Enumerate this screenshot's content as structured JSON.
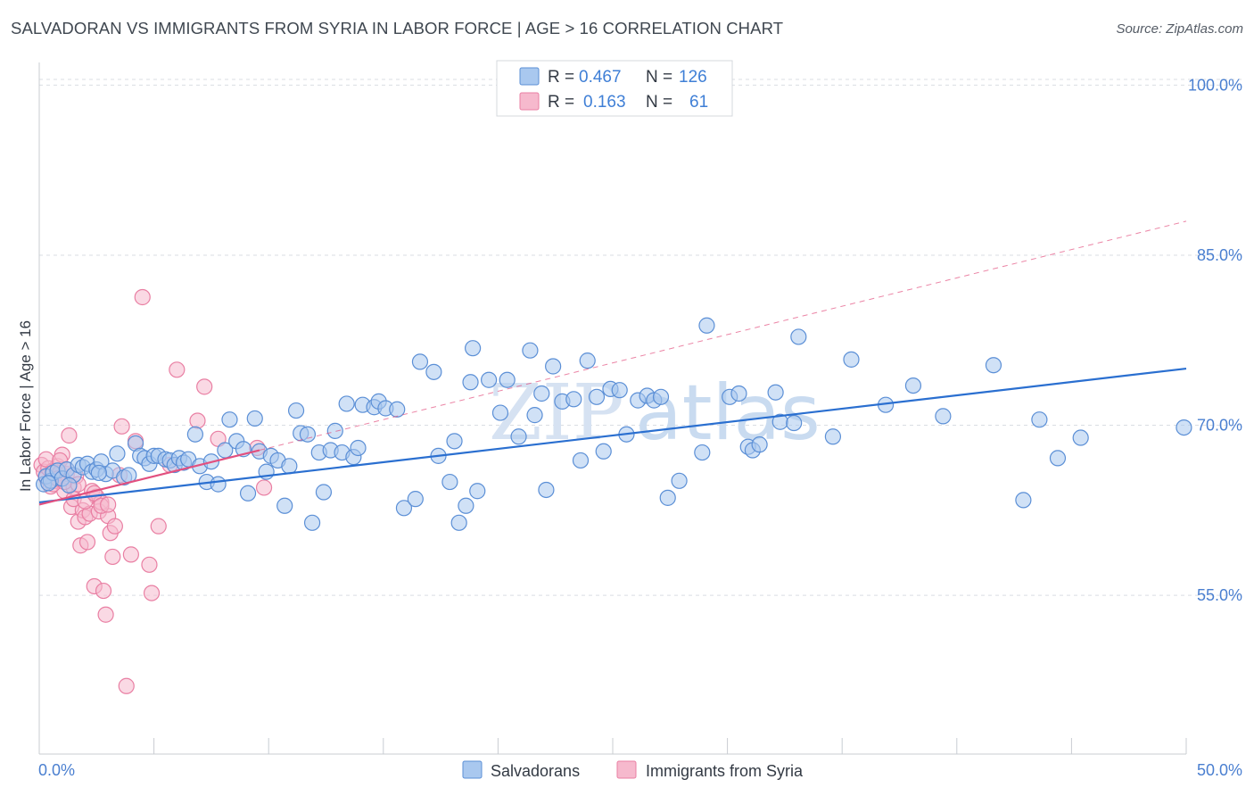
{
  "title": "SALVADORAN VS IMMIGRANTS FROM SYRIA IN LABOR FORCE | AGE > 16 CORRELATION CHART",
  "source": "Source: ZipAtlas.com",
  "watermark_left": "ZIP",
  "watermark_right": "atlas",
  "colors": {
    "blue_fill": "#a9c8ef",
    "blue_stroke": "#5b8fd6",
    "blue_line": "#2a6fd0",
    "pink_fill": "#f6b9cd",
    "pink_stroke": "#e97fa3",
    "pink_line": "#e2507f",
    "tick_text": "#4a7fd0",
    "grid": "#d9dde3"
  },
  "legend_top": {
    "rows": [
      {
        "r_label": "R =",
        "r_value": "0.467",
        "n_label": "N =",
        "n_value": "126"
      },
      {
        "r_label": "R =",
        "r_value": "0.163",
        "n_label": "N =",
        "n_value": "61"
      }
    ]
  },
  "legend_bottom": [
    "Salvadorans",
    "Immigrants from Syria"
  ],
  "chart_data": {
    "type": "scatter",
    "title": "SALVADORAN VS IMMIGRANTS FROM SYRIA IN LABOR FORCE | AGE > 16 CORRELATION CHART",
    "xlabel": "",
    "ylabel": "In Labor Force | Age > 16",
    "xlim": [
      0,
      50
    ],
    "ylim": [
      41,
      102
    ],
    "x_tick_labels": [
      "0.0%",
      "50.0%"
    ],
    "y_ticks": [
      55,
      70,
      85,
      100
    ],
    "y_tick_labels": [
      "55.0%",
      "70.0%",
      "85.0%",
      "100.0%"
    ],
    "grid": true,
    "legend_position": "top-center",
    "series": [
      {
        "name": "Salvadorans",
        "r": 0.467,
        "n": 126,
        "trend": {
          "x": [
            0,
            50
          ],
          "y": [
            63.2,
            75.0
          ]
        },
        "points": [
          [
            0.2,
            64.8
          ],
          [
            0.3,
            65.5
          ],
          [
            0.5,
            65.1
          ],
          [
            0.6,
            65.8
          ],
          [
            0.8,
            66.0
          ],
          [
            1.0,
            65.3
          ],
          [
            1.2,
            66.1
          ],
          [
            1.5,
            65.6
          ],
          [
            1.7,
            66.5
          ],
          [
            1.9,
            66.3
          ],
          [
            2.1,
            66.6
          ],
          [
            2.3,
            65.9
          ],
          [
            2.5,
            66.1
          ],
          [
            2.7,
            66.8
          ],
          [
            2.9,
            65.7
          ],
          [
            3.2,
            66.0
          ],
          [
            3.4,
            67.5
          ],
          [
            3.7,
            65.4
          ],
          [
            3.9,
            65.6
          ],
          [
            4.2,
            68.4
          ],
          [
            4.4,
            67.3
          ],
          [
            4.6,
            67.1
          ],
          [
            4.8,
            66.6
          ],
          [
            5.0,
            67.3
          ],
          [
            5.2,
            67.3
          ],
          [
            5.5,
            67.0
          ],
          [
            5.7,
            66.9
          ],
          [
            5.9,
            66.5
          ],
          [
            6.1,
            67.1
          ],
          [
            6.3,
            66.7
          ],
          [
            6.5,
            67.0
          ],
          [
            6.8,
            69.2
          ],
          [
            7.0,
            66.4
          ],
          [
            7.3,
            65.0
          ],
          [
            7.5,
            66.8
          ],
          [
            7.8,
            64.8
          ],
          [
            8.1,
            67.8
          ],
          [
            8.3,
            70.5
          ],
          [
            8.6,
            68.6
          ],
          [
            8.9,
            67.9
          ],
          [
            9.1,
            64.0
          ],
          [
            9.4,
            70.6
          ],
          [
            9.6,
            67.7
          ],
          [
            9.9,
            65.9
          ],
          [
            10.1,
            67.3
          ],
          [
            10.4,
            66.9
          ],
          [
            10.7,
            62.9
          ],
          [
            10.9,
            66.4
          ],
          [
            11.2,
            71.3
          ],
          [
            11.4,
            69.3
          ],
          [
            11.7,
            69.2
          ],
          [
            11.9,
            61.4
          ],
          [
            12.2,
            67.6
          ],
          [
            12.4,
            64.1
          ],
          [
            12.7,
            67.8
          ],
          [
            12.9,
            69.5
          ],
          [
            13.2,
            67.6
          ],
          [
            13.4,
            71.9
          ],
          [
            13.7,
            67.2
          ],
          [
            13.9,
            68.0
          ],
          [
            14.1,
            71.8
          ],
          [
            14.6,
            71.6
          ],
          [
            14.8,
            72.1
          ],
          [
            15.1,
            71.5
          ],
          [
            15.6,
            71.4
          ],
          [
            15.9,
            62.7
          ],
          [
            16.4,
            63.5
          ],
          [
            16.6,
            75.6
          ],
          [
            17.2,
            74.7
          ],
          [
            17.4,
            67.3
          ],
          [
            17.9,
            65.0
          ],
          [
            18.1,
            68.6
          ],
          [
            18.3,
            61.4
          ],
          [
            18.6,
            62.9
          ],
          [
            18.8,
            73.8
          ],
          [
            18.9,
            76.8
          ],
          [
            19.1,
            64.2
          ],
          [
            19.6,
            74.0
          ],
          [
            20.1,
            71.1
          ],
          [
            20.4,
            74.0
          ],
          [
            20.9,
            69.0
          ],
          [
            21.4,
            76.6
          ],
          [
            21.6,
            70.9
          ],
          [
            21.9,
            72.8
          ],
          [
            22.1,
            64.3
          ],
          [
            22.4,
            75.2
          ],
          [
            22.8,
            72.1
          ],
          [
            23.3,
            72.3
          ],
          [
            23.6,
            66.9
          ],
          [
            23.9,
            75.7
          ],
          [
            24.3,
            72.5
          ],
          [
            24.6,
            67.7
          ],
          [
            24.9,
            73.2
          ],
          [
            25.3,
            73.1
          ],
          [
            25.6,
            69.2
          ],
          [
            26.1,
            72.2
          ],
          [
            26.5,
            72.6
          ],
          [
            26.8,
            72.2
          ],
          [
            27.1,
            72.5
          ],
          [
            27.4,
            63.6
          ],
          [
            27.9,
            65.1
          ],
          [
            28.9,
            67.6
          ],
          [
            29.1,
            78.8
          ],
          [
            30.1,
            72.5
          ],
          [
            30.5,
            72.8
          ],
          [
            30.9,
            68.1
          ],
          [
            31.1,
            67.8
          ],
          [
            31.4,
            68.3
          ],
          [
            32.1,
            72.9
          ],
          [
            32.3,
            70.3
          ],
          [
            32.9,
            70.2
          ],
          [
            33.1,
            77.8
          ],
          [
            34.6,
            69.0
          ],
          [
            35.4,
            75.8
          ],
          [
            36.9,
            71.8
          ],
          [
            38.1,
            73.5
          ],
          [
            39.4,
            70.8
          ],
          [
            41.6,
            75.3
          ],
          [
            42.9,
            63.4
          ],
          [
            43.6,
            70.5
          ],
          [
            44.4,
            67.1
          ],
          [
            45.4,
            68.9
          ],
          [
            49.9,
            69.8
          ],
          [
            0.4,
            64.9
          ],
          [
            1.3,
            64.7
          ],
          [
            2.6,
            65.8
          ]
        ]
      },
      {
        "name": "Immigrants from Syria",
        "r": 0.163,
        "n": 61,
        "trend": {
          "x": [
            0,
            9.6
          ],
          "y": [
            63.0,
            67.8
          ]
        },
        "points": [
          [
            0.1,
            66.5
          ],
          [
            0.2,
            65.9
          ],
          [
            0.3,
            65.4
          ],
          [
            0.4,
            66.2
          ],
          [
            0.5,
            64.6
          ],
          [
            0.6,
            66.0
          ],
          [
            0.7,
            65.1
          ],
          [
            0.8,
            66.4
          ],
          [
            0.9,
            65.8
          ],
          [
            1.0,
            67.4
          ],
          [
            1.1,
            64.2
          ],
          [
            1.2,
            65.7
          ],
          [
            1.3,
            69.1
          ],
          [
            1.4,
            62.8
          ],
          [
            1.5,
            64.5
          ],
          [
            1.6,
            65.5
          ],
          [
            1.7,
            61.5
          ],
          [
            1.8,
            59.4
          ],
          [
            1.9,
            62.5
          ],
          [
            2.0,
            61.9
          ],
          [
            2.1,
            59.7
          ],
          [
            2.2,
            62.2
          ],
          [
            2.3,
            64.2
          ],
          [
            2.4,
            55.8
          ],
          [
            2.5,
            63.7
          ],
          [
            2.6,
            62.4
          ],
          [
            2.7,
            63.2
          ],
          [
            2.8,
            55.4
          ],
          [
            2.9,
            53.3
          ],
          [
            3.0,
            62.0
          ],
          [
            3.1,
            60.5
          ],
          [
            3.2,
            58.4
          ],
          [
            3.3,
            61.1
          ],
          [
            3.5,
            65.6
          ],
          [
            3.6,
            69.9
          ],
          [
            3.8,
            47.0
          ],
          [
            4.0,
            58.6
          ],
          [
            4.2,
            68.6
          ],
          [
            4.5,
            81.3
          ],
          [
            4.8,
            57.7
          ],
          [
            4.9,
            55.2
          ],
          [
            5.2,
            61.1
          ],
          [
            5.7,
            66.5
          ],
          [
            6.0,
            74.9
          ],
          [
            6.9,
            70.4
          ],
          [
            7.2,
            73.4
          ],
          [
            7.8,
            68.8
          ],
          [
            9.5,
            68.0
          ],
          [
            9.8,
            64.5
          ],
          [
            0.3,
            67.0
          ],
          [
            0.6,
            64.8
          ],
          [
            0.9,
            66.9
          ],
          [
            1.2,
            66.1
          ],
          [
            1.5,
            63.5
          ],
          [
            2.0,
            63.3
          ],
          [
            2.4,
            64.0
          ],
          [
            2.7,
            62.9
          ],
          [
            3.0,
            63.0
          ],
          [
            0.8,
            65.3
          ],
          [
            1.1,
            65.0
          ],
          [
            1.7,
            64.8
          ]
        ]
      }
    ]
  }
}
